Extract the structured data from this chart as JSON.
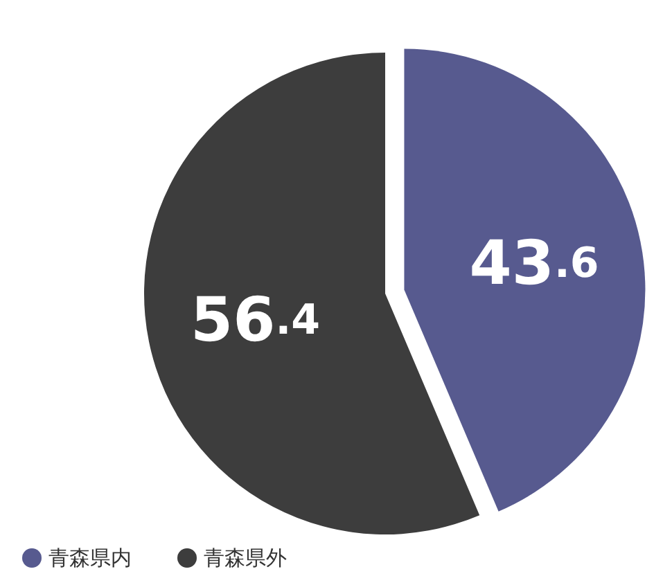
{
  "chart_data": {
    "type": "pie",
    "categories": [
      "青森県内",
      "青森県外"
    ],
    "values": [
      43.6,
      56.4
    ],
    "colors": [
      "#575a8f",
      "#3d3d3d"
    ],
    "data_labels": true,
    "legend": "bottom left"
  }
}
